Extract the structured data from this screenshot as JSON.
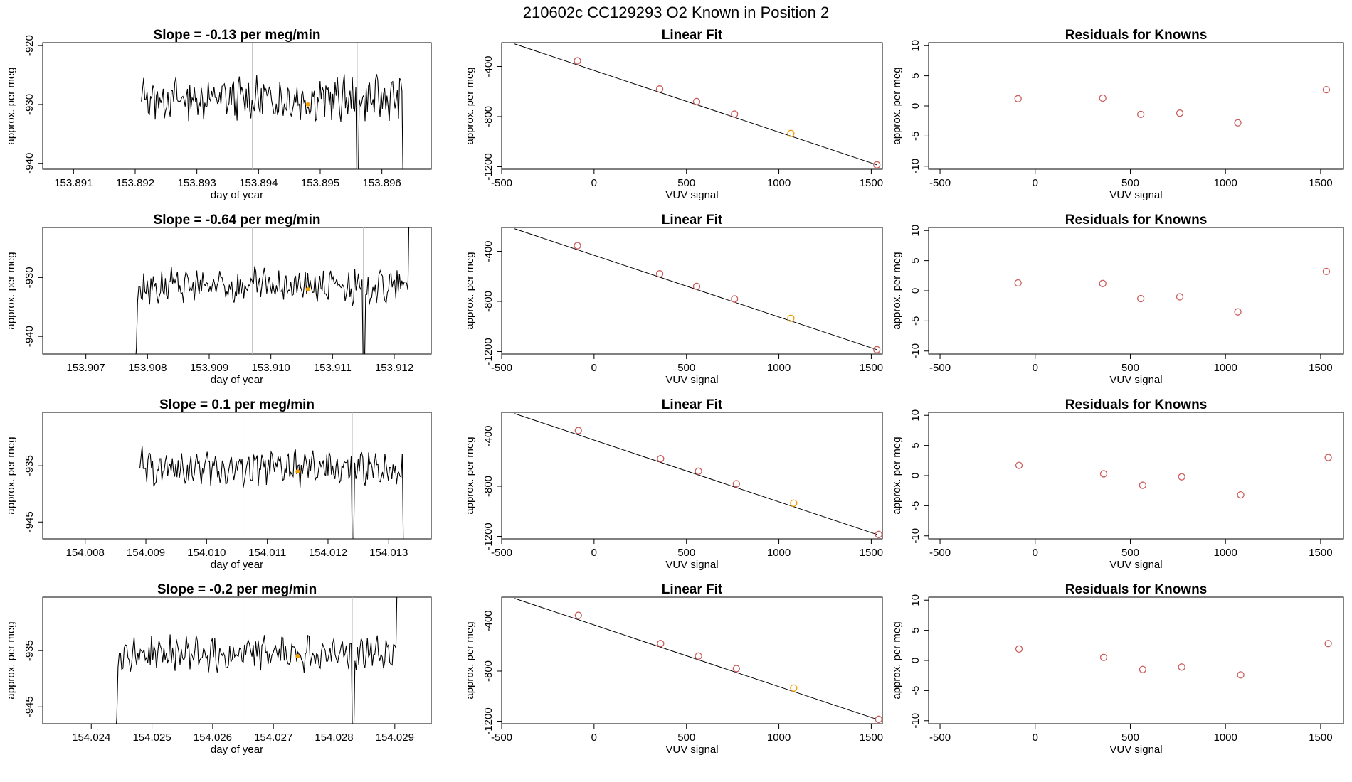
{
  "figure_title": "210602c      CC129293   O2 Known in Position  2",
  "colors": {
    "line": "#000000",
    "axis": "#000000",
    "vline": "#bebebe",
    "point": "#cd5c5c",
    "highlight": "#f0a000"
  },
  "chart_data": [
    {
      "type": "line",
      "title": "Slope =  -0.13  per meg/min",
      "xlabel": "day of year",
      "ylabel": "approx. per meg",
      "xlim": [
        153.8905,
        153.8968
      ],
      "ylim": [
        -941,
        -919.5
      ],
      "xticks": [
        "153.891",
        "153.892",
        "153.893",
        "153.894",
        "153.895",
        "153.896"
      ],
      "yticks": [
        "-920",
        "-930",
        "-940"
      ],
      "vlines": [
        153.8939,
        153.8956
      ],
      "highlight": [
        153.8948,
        -930
      ],
      "series_start": 153.8921,
      "series_end": 153.8964,
      "edge_top": -919.5,
      "edge_bottom": -941,
      "baseline": -929,
      "noise": 3
    },
    {
      "type": "scatter",
      "title": "Linear Fit",
      "xlabel": "VUV signal",
      "ylabel": "approx. per meg",
      "xlim": [
        -500,
        1560
      ],
      "ylim": [
        -1220,
        -210
      ],
      "xticks": [
        "-500",
        "0",
        "500",
        "1000",
        "1500"
      ],
      "yticks": [
        "-400",
        "-800",
        "-1200"
      ],
      "fit": [
        [
          -430,
          -220
        ],
        [
          1530,
          -1185
        ]
      ],
      "points": [
        [
          -90,
          -355
        ],
        [
          355,
          -580
        ],
        [
          555,
          -680
        ],
        [
          760,
          -780
        ],
        [
          1065,
          -935
        ],
        [
          1530,
          -1185
        ]
      ],
      "highlight_index": 4
    },
    {
      "type": "scatter",
      "title": "Residuals for Knowns",
      "xlabel": "VUV signal",
      "ylabel": "approx. per meg",
      "xlim": [
        -560,
        1620
      ],
      "ylim": [
        -10.5,
        10.5
      ],
      "xticks": [
        "-500",
        "0",
        "500",
        "1000",
        "1500"
      ],
      "yticks": [
        "10",
        "5",
        "0",
        "-5",
        "-10"
      ],
      "points": [
        [
          -90,
          1.2
        ],
        [
          355,
          1.3
        ],
        [
          555,
          -1.4
        ],
        [
          760,
          -1.2
        ],
        [
          1065,
          -2.8
        ],
        [
          1530,
          2.7
        ]
      ]
    },
    {
      "type": "line",
      "title": "Slope =  -0.64  per meg/min",
      "xlabel": "day of year",
      "ylabel": "approx. per meg",
      "xlim": [
        153.9063,
        153.9126
      ],
      "ylim": [
        -943,
        -921.5
      ],
      "xticks": [
        "153.907",
        "153.908",
        "153.909",
        "153.910",
        "153.911",
        "153.912"
      ],
      "yticks": [
        "-930",
        "-940"
      ],
      "vlines": [
        153.9097,
        153.9115
      ],
      "highlight": [
        153.9106,
        -932
      ],
      "series_start": 153.9078,
      "series_end": 153.9123,
      "edge_top": -921.5,
      "edge_bottom": -943,
      "baseline": -931.5,
      "noise": 2.5
    },
    {
      "type": "scatter",
      "title": "Linear Fit",
      "xlabel": "VUV signal",
      "ylabel": "approx. per meg",
      "xlim": [
        -500,
        1560
      ],
      "ylim": [
        -1220,
        -210
      ],
      "xticks": [
        "-500",
        "0",
        "500",
        "1000",
        "1500"
      ],
      "yticks": [
        "-400",
        "-800",
        "-1200"
      ],
      "fit": [
        [
          -430,
          -220
        ],
        [
          1530,
          -1185
        ]
      ],
      "points": [
        [
          -90,
          -355
        ],
        [
          355,
          -580
        ],
        [
          555,
          -680
        ],
        [
          760,
          -780
        ],
        [
          1065,
          -935
        ],
        [
          1530,
          -1185
        ]
      ],
      "highlight_index": 4
    },
    {
      "type": "scatter",
      "title": "Residuals for Knowns",
      "xlabel": "VUV signal",
      "ylabel": "approx. per meg",
      "xlim": [
        -560,
        1620
      ],
      "ylim": [
        -10.5,
        10.5
      ],
      "xticks": [
        "-500",
        "0",
        "500",
        "1000",
        "1500"
      ],
      "yticks": [
        "10",
        "5",
        "0",
        "-5",
        "-10"
      ],
      "points": [
        [
          -90,
          1.3
        ],
        [
          355,
          1.2
        ],
        [
          555,
          -1.3
        ],
        [
          760,
          -1.0
        ],
        [
          1065,
          -3.5
        ],
        [
          1530,
          3.2
        ]
      ]
    },
    {
      "type": "line",
      "title": "Slope =  0.1  per meg/min",
      "xlabel": "day of year",
      "ylabel": "approx. per meg",
      "xlim": [
        154.0073,
        154.0137
      ],
      "ylim": [
        -948,
        -925.5
      ],
      "xticks": [
        "154.008",
        "154.009",
        "154.010",
        "154.011",
        "154.012",
        "154.013"
      ],
      "yticks": [
        "-935",
        "-945"
      ],
      "vlines": [
        154.0106,
        154.0124
      ],
      "highlight": [
        154.0115,
        -936
      ],
      "series_start": 154.0089,
      "series_end": 154.0133,
      "edge_top": -925.5,
      "edge_bottom": -948,
      "baseline": -935.5,
      "noise": 2.5
    },
    {
      "type": "scatter",
      "title": "Linear Fit",
      "xlabel": "VUV signal",
      "ylabel": "approx. per meg",
      "xlim": [
        -500,
        1560
      ],
      "ylim": [
        -1220,
        -210
      ],
      "xticks": [
        "-500",
        "0",
        "500",
        "1000",
        "1500"
      ],
      "yticks": [
        "-400",
        "-800",
        "-1200"
      ],
      "fit": [
        [
          -430,
          -220
        ],
        [
          1530,
          -1185
        ]
      ],
      "points": [
        [
          -85,
          -355
        ],
        [
          360,
          -580
        ],
        [
          565,
          -680
        ],
        [
          770,
          -780
        ],
        [
          1080,
          -935
        ],
        [
          1540,
          -1185
        ]
      ],
      "highlight_index": 4
    },
    {
      "type": "scatter",
      "title": "Residuals for Knowns",
      "xlabel": "VUV signal",
      "ylabel": "approx. per meg",
      "xlim": [
        -560,
        1620
      ],
      "ylim": [
        -10.5,
        10.5
      ],
      "xticks": [
        "-500",
        "0",
        "500",
        "1000",
        "1500"
      ],
      "yticks": [
        "10",
        "5",
        "0",
        "-5",
        "-10"
      ],
      "points": [
        [
          -85,
          1.7
        ],
        [
          360,
          0.3
        ],
        [
          565,
          -1.6
        ],
        [
          770,
          -0.2
        ],
        [
          1080,
          -3.2
        ],
        [
          1540,
          3.0
        ]
      ]
    },
    {
      "type": "line",
      "title": "Slope =  -0.2  per meg/min",
      "xlabel": "day of year",
      "ylabel": "approx. per meg",
      "xlim": [
        154.0232,
        154.0296
      ],
      "ylim": [
        -948,
        -925.5
      ],
      "xticks": [
        "154.024",
        "154.025",
        "154.026",
        "154.027",
        "154.028",
        "154.029"
      ],
      "yticks": [
        "-935",
        "-945"
      ],
      "vlines": [
        154.0265,
        154.0283
      ],
      "highlight": [
        154.0274,
        -936
      ],
      "series_start": 154.0244,
      "series_end": 154.0291,
      "edge_top": -925.5,
      "edge_bottom": -948,
      "baseline": -935.5,
      "noise": 2.5
    },
    {
      "type": "scatter",
      "title": "Linear Fit",
      "xlabel": "VUV signal",
      "ylabel": "approx. per meg",
      "xlim": [
        -500,
        1560
      ],
      "ylim": [
        -1220,
        -210
      ],
      "xticks": [
        "-500",
        "0",
        "500",
        "1000",
        "1500"
      ],
      "yticks": [
        "-400",
        "-800",
        "-1200"
      ],
      "fit": [
        [
          -430,
          -220
        ],
        [
          1530,
          -1185
        ]
      ],
      "points": [
        [
          -85,
          -355
        ],
        [
          360,
          -580
        ],
        [
          565,
          -680
        ],
        [
          770,
          -780
        ],
        [
          1080,
          -935
        ],
        [
          1540,
          -1185
        ]
      ],
      "highlight_index": 4
    },
    {
      "type": "scatter",
      "title": "Residuals for Knowns",
      "xlabel": "VUV signal",
      "ylabel": "approx. per meg",
      "xlim": [
        -560,
        1620
      ],
      "ylim": [
        -10.5,
        10.5
      ],
      "xticks": [
        "-500",
        "0",
        "500",
        "1000",
        "1500"
      ],
      "yticks": [
        "10",
        "5",
        "0",
        "-5",
        "-10"
      ],
      "points": [
        [
          -85,
          1.9
        ],
        [
          360,
          0.5
        ],
        [
          565,
          -1.5
        ],
        [
          770,
          -1.1
        ],
        [
          1080,
          -2.4
        ],
        [
          1540,
          2.8
        ]
      ]
    }
  ]
}
